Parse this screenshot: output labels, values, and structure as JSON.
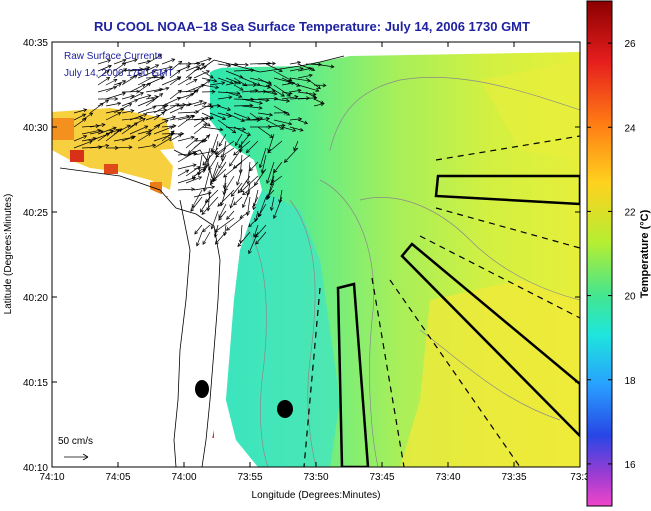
{
  "chart_data": {
    "type": "heatmap",
    "title": "RU COOL  NOAA–18  Sea Surface Temperature:  July 14, 2006 1730 GMT",
    "xlabel": "Longitude (Degrees:Minutes)",
    "ylabel": "Latitude (Degrees:Minutes)",
    "x_ticks": [
      "74:10",
      "74:05",
      "74:00",
      "73:55",
      "73:50",
      "73:45",
      "73:40",
      "73:35",
      "73:3"
    ],
    "y_ticks": [
      "40:35",
      "40:30",
      "40:25",
      "40:20",
      "40:15",
      "40:10"
    ],
    "colorbar": {
      "label": "Temperature (°C)",
      "ticks": [
        "26",
        "24",
        "22",
        "20",
        "18",
        "16"
      ],
      "range": [
        15,
        27
      ]
    },
    "annotations": {
      "vector_title": "Raw Surface Currents",
      "vector_date": "July 14, 2006 1700 GMT",
      "scale_label": "50 cm/s"
    }
  }
}
